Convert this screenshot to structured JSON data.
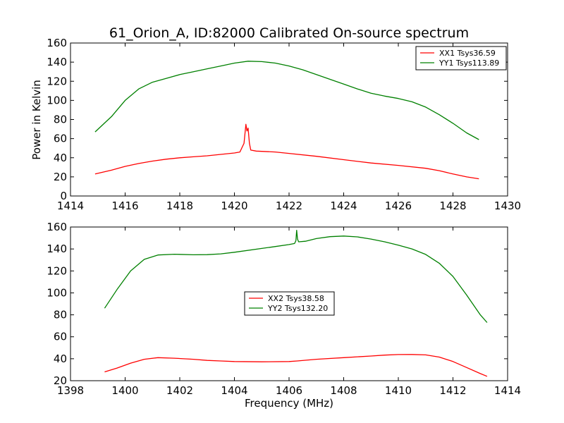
{
  "figure": {
    "title": "61_Orion_A, ID:82000 Calibrated On-source spectrum",
    "ylabel": "Power in Kelvin",
    "xlabel": "Frequency (MHz)"
  },
  "chart_data": [
    {
      "type": "line",
      "xlim": [
        1414,
        1430
      ],
      "ylim": [
        0,
        160
      ],
      "xticks": [
        "1414",
        "1416",
        "1418",
        "1420",
        "1422",
        "1424",
        "1426",
        "1428",
        "1430"
      ],
      "yticks": [
        "0",
        "20",
        "40",
        "60",
        "80",
        "100",
        "120",
        "140",
        "160"
      ],
      "legend_position": "top-right",
      "grid": false,
      "series": [
        {
          "name": "XX1 Tsys36.59",
          "color": "#ff0000",
          "points": [
            [
              1414.9,
              23
            ],
            [
              1415.5,
              27
            ],
            [
              1416,
              31
            ],
            [
              1416.5,
              34
            ],
            [
              1417,
              36.5
            ],
            [
              1417.5,
              38.5
            ],
            [
              1418,
              40
            ],
            [
              1418.5,
              41
            ],
            [
              1419,
              42
            ],
            [
              1419.5,
              43.5
            ],
            [
              1420,
              45
            ],
            [
              1420.2,
              46
            ],
            [
              1420.3,
              52
            ],
            [
              1420.35,
              55
            ],
            [
              1420.42,
              75
            ],
            [
              1420.46,
              68
            ],
            [
              1420.5,
              71
            ],
            [
              1420.55,
              55
            ],
            [
              1420.6,
              48
            ],
            [
              1420.8,
              47
            ],
            [
              1421.5,
              46
            ],
            [
              1422,
              44.5
            ],
            [
              1423,
              41.5
            ],
            [
              1424,
              38
            ],
            [
              1425,
              34.5
            ],
            [
              1426,
              32
            ],
            [
              1427,
              29
            ],
            [
              1427.5,
              26.5
            ],
            [
              1428,
              23
            ],
            [
              1428.5,
              20
            ],
            [
              1428.95,
              18
            ]
          ]
        },
        {
          "name": "YY1 Tsys113.89",
          "color": "#008000",
          "points": [
            [
              1414.9,
              67
            ],
            [
              1415.5,
              83
            ],
            [
              1416,
              100
            ],
            [
              1416.5,
              112
            ],
            [
              1417,
              119
            ],
            [
              1417.5,
              123
            ],
            [
              1418,
              127
            ],
            [
              1418.5,
              130
            ],
            [
              1419,
              133
            ],
            [
              1419.5,
              136
            ],
            [
              1420,
              139
            ],
            [
              1420.5,
              141
            ],
            [
              1421,
              140.5
            ],
            [
              1421.5,
              139
            ],
            [
              1422,
              136
            ],
            [
              1422.5,
              132
            ],
            [
              1423,
              127
            ],
            [
              1423.5,
              122
            ],
            [
              1424,
              117
            ],
            [
              1424.5,
              112
            ],
            [
              1425,
              107.5
            ],
            [
              1425.5,
              104.5
            ],
            [
              1426,
              102
            ],
            [
              1426.5,
              98.5
            ],
            [
              1427,
              93
            ],
            [
              1427.5,
              85
            ],
            [
              1428,
              76
            ],
            [
              1428.5,
              66
            ],
            [
              1428.95,
              59
            ]
          ]
        }
      ]
    },
    {
      "type": "line",
      "xlim": [
        1398,
        1414
      ],
      "ylim": [
        20,
        160
      ],
      "xticks": [
        "1398",
        "1400",
        "1402",
        "1404",
        "1406",
        "1408",
        "1410",
        "1412",
        "1414"
      ],
      "yticks": [
        "20",
        "40",
        "60",
        "80",
        "100",
        "120",
        "140",
        "160"
      ],
      "legend_position": "center",
      "grid": false,
      "series": [
        {
          "name": "XX2 Tsys38.58",
          "color": "#ff0000",
          "points": [
            [
              1399.25,
              28
            ],
            [
              1399.7,
              31.5
            ],
            [
              1400.2,
              36
            ],
            [
              1400.7,
              39.5
            ],
            [
              1401.2,
              41
            ],
            [
              1401.8,
              40.5
            ],
            [
              1402.5,
              39.5
            ],
            [
              1403,
              38.5
            ],
            [
              1403.5,
              38
            ],
            [
              1404,
              37.5
            ],
            [
              1405,
              37.2
            ],
            [
              1406,
              37.5
            ],
            [
              1406.3,
              38
            ],
            [
              1407,
              39.5
            ],
            [
              1408,
              41
            ],
            [
              1409,
              42.5
            ],
            [
              1409.5,
              43.3
            ],
            [
              1410,
              43.8
            ],
            [
              1410.5,
              43.9
            ],
            [
              1411,
              43.5
            ],
            [
              1411.5,
              41.5
            ],
            [
              1412,
              37.5
            ],
            [
              1412.5,
              32
            ],
            [
              1413,
              26.5
            ],
            [
              1413.25,
              24
            ]
          ]
        },
        {
          "name": "YY2 Tsys132.20",
          "color": "#008000",
          "points": [
            [
              1399.25,
              86
            ],
            [
              1399.7,
              103
            ],
            [
              1400.2,
              120
            ],
            [
              1400.7,
              130.5
            ],
            [
              1401.2,
              134.5
            ],
            [
              1401.8,
              135.2
            ],
            [
              1402.5,
              134.7
            ],
            [
              1403,
              134.8
            ],
            [
              1403.5,
              135.5
            ],
            [
              1404,
              137
            ],
            [
              1405,
              140.5
            ],
            [
              1405.5,
              142.2
            ],
            [
              1406,
              144
            ],
            [
              1406.2,
              145
            ],
            [
              1406.25,
              147.5
            ],
            [
              1406.28,
              157
            ],
            [
              1406.31,
              149
            ],
            [
              1406.35,
              146.5
            ],
            [
              1406.6,
              147
            ],
            [
              1407,
              149.5
            ],
            [
              1407.5,
              151.2
            ],
            [
              1408,
              151.8
            ],
            [
              1408.5,
              151
            ],
            [
              1409,
              149
            ],
            [
              1409.5,
              146.5
            ],
            [
              1410,
              143.5
            ],
            [
              1410.5,
              140
            ],
            [
              1411,
              135
            ],
            [
              1411.5,
              127
            ],
            [
              1412,
              115
            ],
            [
              1412.5,
              98
            ],
            [
              1413,
              80
            ],
            [
              1413.25,
              73
            ]
          ]
        }
      ]
    }
  ]
}
